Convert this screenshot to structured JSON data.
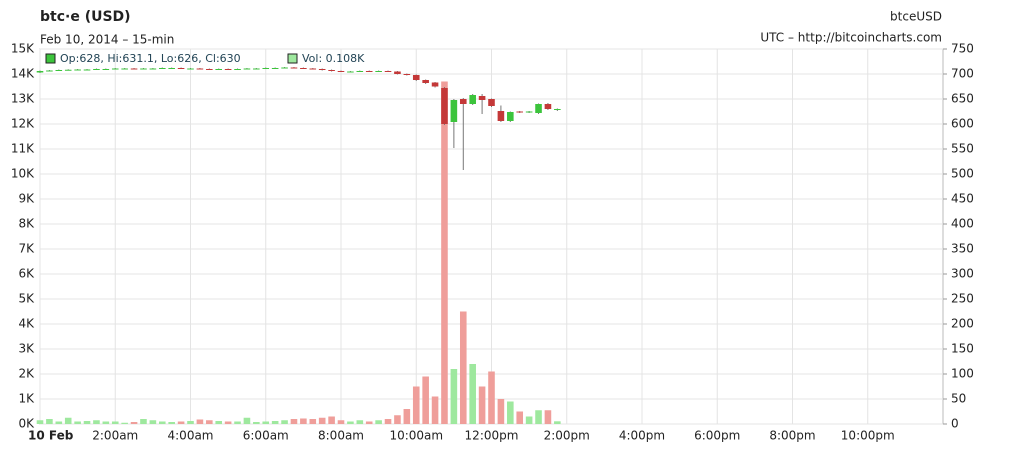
{
  "chart_data": {
    "type": "candlestick",
    "title": "btc·e (USD)",
    "subtitle": "Feb 10, 2014 – 15-min",
    "symbol": "btceUSD",
    "source": "UTC – http://bitcoincharts.com",
    "legend_ohlc": "Op:628, Hi:631.1, Lo:626, Cl:630",
    "legend_volume": "Vol: 0.108K",
    "x": [
      0,
      0.25,
      0.5,
      0.75,
      1,
      1.25,
      1.5,
      1.75,
      2,
      2.25,
      2.5,
      2.75,
      3,
      3.25,
      3.5,
      3.75,
      4,
      4.25,
      4.5,
      4.75,
      5,
      5.25,
      5.5,
      5.75,
      6,
      6.25,
      6.5,
      6.75,
      7,
      7.25,
      7.5,
      7.75,
      8,
      8.25,
      8.5,
      8.75,
      9,
      9.25,
      9.5,
      9.75,
      10,
      10.25,
      10.5,
      10.75,
      11,
      11.25,
      11.5,
      11.75,
      12,
      12.25,
      12.5,
      12.75,
      13,
      13.25,
      13.5,
      13.75
    ],
    "open": [
      703,
      706,
      707,
      708,
      708,
      709,
      709,
      710,
      710,
      711,
      711,
      710,
      711,
      711,
      712,
      712,
      711,
      711,
      710,
      709,
      710,
      709,
      710,
      711,
      711,
      712,
      712,
      713,
      712,
      711,
      710,
      708,
      706,
      705,
      705,
      706,
      705,
      706,
      705,
      700,
      698,
      688,
      683,
      672,
      604,
      650,
      640,
      656,
      650,
      626,
      606,
      625,
      624,
      622,
      640,
      628
    ],
    "high": [
      707,
      708,
      709,
      709.5,
      710,
      710,
      711,
      711,
      712,
      712,
      712,
      712,
      712,
      713,
      713,
      713,
      712,
      712,
      711,
      711,
      711,
      711,
      712,
      712,
      713,
      713,
      714,
      714,
      713,
      712,
      711,
      709,
      707,
      706,
      707,
      707,
      707,
      707,
      706,
      701,
      699,
      689,
      684,
      674,
      650,
      652,
      660,
      660,
      651,
      637,
      625,
      626,
      626,
      641,
      642,
      631.1
    ],
    "low": [
      702,
      705,
      706,
      707,
      707,
      708,
      708,
      709,
      709,
      710,
      709,
      709,
      710,
      710,
      711,
      710,
      710,
      709,
      708,
      708,
      708,
      708,
      709,
      710,
      710,
      711,
      711,
      711,
      710,
      709,
      707,
      705,
      704,
      704,
      704,
      704,
      704,
      704,
      699,
      697,
      686,
      680,
      673,
      598,
      552,
      508,
      638,
      620,
      634,
      604,
      604,
      622,
      622,
      620,
      628,
      626
    ],
    "close": [
      706,
      707,
      708,
      708.5,
      709,
      709,
      710,
      710,
      711,
      711,
      710,
      711,
      711,
      712,
      712,
      711,
      711,
      710,
      709,
      710,
      709,
      710,
      711,
      711,
      712,
      712,
      713,
      712,
      711,
      710,
      708,
      706,
      705,
      705,
      706,
      705,
      706,
      705,
      700,
      698,
      688,
      682,
      675,
      600,
      648,
      640,
      658,
      648,
      636,
      606,
      624,
      624,
      625,
      640,
      630,
      630
    ],
    "volume": [
      0.15,
      0.2,
      0.1,
      0.25,
      0.1,
      0.12,
      0.15,
      0.1,
      0.1,
      0.05,
      0.08,
      0.2,
      0.15,
      0.1,
      0.08,
      0.1,
      0.12,
      0.18,
      0.15,
      0.12,
      0.1,
      0.1,
      0.25,
      0.08,
      0.1,
      0.12,
      0.15,
      0.2,
      0.22,
      0.2,
      0.25,
      0.3,
      0.15,
      0.1,
      0.15,
      0.1,
      0.15,
      0.2,
      0.35,
      0.6,
      1.5,
      1.9,
      1.1,
      13.7,
      2.2,
      4.5,
      2.4,
      1.5,
      2.1,
      1.0,
      0.9,
      0.5,
      0.3,
      0.55,
      0.55,
      0.108
    ],
    "up_color": "#3cc43c",
    "down_color": "#c43838",
    "up_volume_color": "#9ee89e",
    "down_volume_color": "#ef9e9a",
    "xlim": [
      0,
      24
    ],
    "xticks": [
      {
        "value": 0,
        "label": "10 Feb"
      },
      {
        "value": 2,
        "label": "2:00am"
      },
      {
        "value": 4,
        "label": "4:00am"
      },
      {
        "value": 6,
        "label": "6:00am"
      },
      {
        "value": 8,
        "label": "8:00am"
      },
      {
        "value": 10,
        "label": "10:00am"
      },
      {
        "value": 12,
        "label": "12:00pm"
      },
      {
        "value": 14,
        "label": "2:00pm"
      },
      {
        "value": 16,
        "label": "4:00pm"
      },
      {
        "value": 18,
        "label": "6:00pm"
      },
      {
        "value": 20,
        "label": "8:00pm"
      },
      {
        "value": 22,
        "label": "10:00pm"
      }
    ],
    "ylim": [
      0,
      15
    ],
    "yticks": [
      {
        "value": 0,
        "label": "0K"
      },
      {
        "value": 1,
        "label": "1K"
      },
      {
        "value": 2,
        "label": "2K"
      },
      {
        "value": 3,
        "label": "3K"
      },
      {
        "value": 4,
        "label": "4K"
      },
      {
        "value": 5,
        "label": "5K"
      },
      {
        "value": 6,
        "label": "6K"
      },
      {
        "value": 7,
        "label": "7K"
      },
      {
        "value": 8,
        "label": "8K"
      },
      {
        "value": 9,
        "label": "9K"
      },
      {
        "value": 10,
        "label": "10K"
      },
      {
        "value": 11,
        "label": "11K"
      },
      {
        "value": 12,
        "label": "12K"
      },
      {
        "value": 13,
        "label": "13K"
      },
      {
        "value": 14,
        "label": "14K"
      },
      {
        "value": 15,
        "label": "15K"
      }
    ],
    "y2lim": [
      0,
      750
    ],
    "y2ticks": [
      0,
      50,
      100,
      150,
      200,
      250,
      300,
      350,
      400,
      450,
      500,
      550,
      600,
      650,
      700,
      750
    ],
    "grid": true
  }
}
